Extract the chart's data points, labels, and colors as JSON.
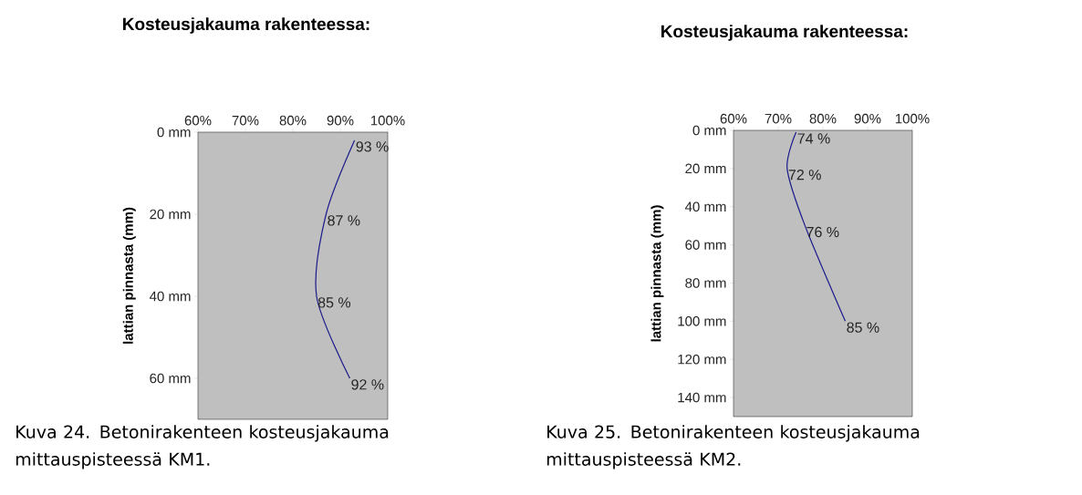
{
  "chart_data": [
    {
      "type": "line",
      "orientation": "horizontal",
      "title": "Kosteusjakauma rakenteessa:",
      "ylabel": "lattian pinnasta (mm)",
      "color": "#1a1a8c",
      "marker": "none",
      "x": [
        2,
        20,
        40,
        60
      ],
      "values": [
        93,
        87,
        85,
        92
      ],
      "value_labels": [
        "93 %",
        "87 %",
        "85 %",
        "92 %"
      ],
      "xlim": [
        60,
        100
      ],
      "xticks": [
        {
          "value": 60,
          "label": "60%"
        },
        {
          "value": 70,
          "label": "70%"
        },
        {
          "value": 80,
          "label": "80%"
        },
        {
          "value": 90,
          "label": "90%"
        },
        {
          "value": 100,
          "label": "100%"
        }
      ],
      "ylim": [
        70,
        0
      ],
      "yticks": [
        {
          "value": 0,
          "label": "0 mm"
        },
        {
          "value": 20,
          "label": "20 mm"
        },
        {
          "value": 40,
          "label": "40 mm"
        },
        {
          "value": 60,
          "label": "60 mm"
        }
      ],
      "annotations": [
        "Kuva 24. Betonirakenteen kosteusjakauma mittauspisteessä KM1."
      ]
    },
    {
      "type": "line",
      "orientation": "horizontal",
      "title": "Kosteusjakauma rakenteessa:",
      "ylabel": "lattian pinnasta (mm)",
      "color": "#1a1a8c",
      "marker": "none",
      "x": [
        1,
        20,
        50,
        100
      ],
      "values": [
        74,
        72,
        76,
        85
      ],
      "value_labels": [
        "74 %",
        "72 %",
        "76 %",
        "85 %"
      ],
      "xlim": [
        60,
        100
      ],
      "xticks": [
        {
          "value": 60,
          "label": "60%"
        },
        {
          "value": 70,
          "label": "70%"
        },
        {
          "value": 80,
          "label": "80%"
        },
        {
          "value": 90,
          "label": "90%"
        },
        {
          "value": 100,
          "label": "100%"
        }
      ],
      "ylim": [
        150,
        0
      ],
      "yticks": [
        {
          "value": 0,
          "label": "0 mm"
        },
        {
          "value": 20,
          "label": "20 mm"
        },
        {
          "value": 40,
          "label": "40 mm"
        },
        {
          "value": 60,
          "label": "60 mm"
        },
        {
          "value": 80,
          "label": "80 mm"
        },
        {
          "value": 100,
          "label": "100 mm"
        },
        {
          "value": 120,
          "label": "120 mm"
        },
        {
          "value": 140,
          "label": "140 mm"
        }
      ],
      "annotations": [
        "Kuva 25. Betonirakenteen kosteusjakauma mittauspisteessä KM2."
      ]
    }
  ]
}
